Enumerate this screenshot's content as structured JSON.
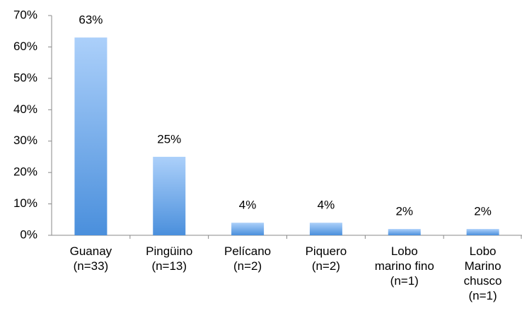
{
  "chart_data": {
    "type": "bar",
    "categories": [
      "Guanay\n(n=33)",
      "Pingüino\n(n=13)",
      "Pelícano\n(n=2)",
      "Piquero\n(n=2)",
      "Lobo\nmarino fino\n(n=1)",
      "Lobo\nMarino\nchusco\n(n=1)"
    ],
    "values": [
      63,
      25,
      4,
      4,
      2,
      2
    ],
    "value_labels": [
      "63%",
      "25%",
      "4%",
      "4%",
      "2%",
      "2%"
    ],
    "color": "#5b9be0",
    "ylim": [
      0,
      70
    ],
    "yticks": [
      {
        "value": 0,
        "label": "0%"
      },
      {
        "value": 10,
        "label": "10%"
      },
      {
        "value": 20,
        "label": "20%"
      },
      {
        "value": 30,
        "label": "30%"
      },
      {
        "value": 40,
        "label": "40%"
      },
      {
        "value": 50,
        "label": "50%"
      },
      {
        "value": 60,
        "label": "60%"
      },
      {
        "value": 70,
        "label": "70%"
      }
    ],
    "grid": false
  }
}
